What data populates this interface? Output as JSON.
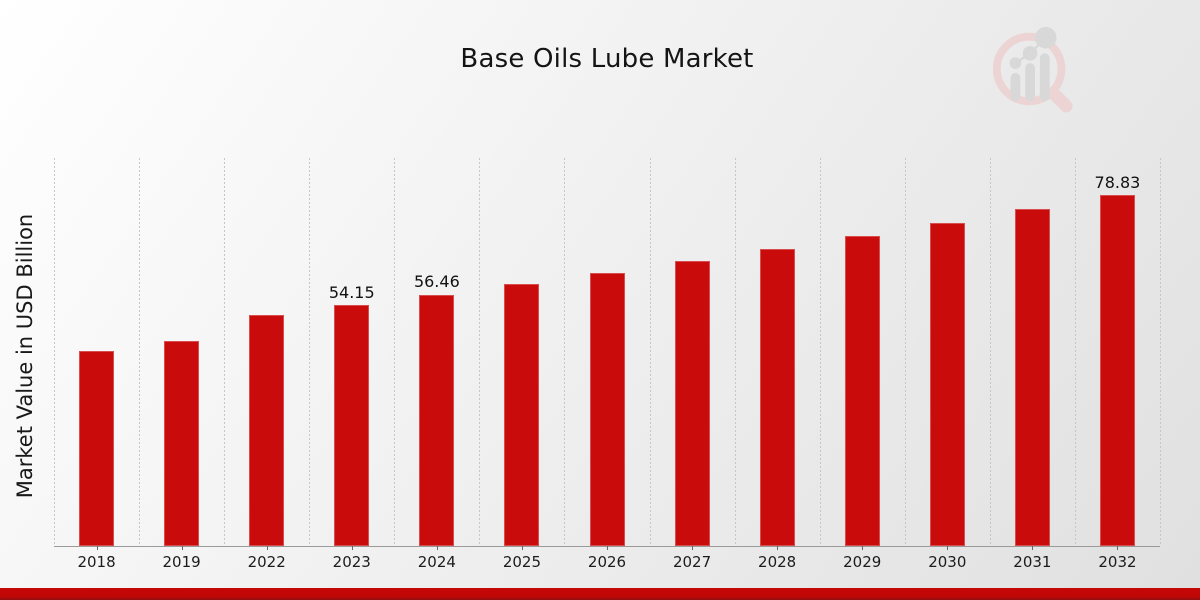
{
  "header": {
    "logo_icon": "magnifier-bar-chart-watermark"
  },
  "colors": {
    "bar": "#c90b0b",
    "footer_strip": "#c50707",
    "gridline": "#c6c6c6",
    "axis_line": "#9a9a9a",
    "text": "#141414",
    "logo_pink": "#ecd4d4",
    "logo_gray": "#d8d8d8"
  },
  "chart_data": {
    "type": "bar",
    "title": "Base Oils Lube Market",
    "ylabel": "Market Value in USD Billion",
    "xlabel": "",
    "categories": [
      "2018",
      "2019",
      "2022",
      "2023",
      "2024",
      "2025",
      "2026",
      "2027",
      "2028",
      "2029",
      "2030",
      "2031",
      "2032"
    ],
    "values": [
      43.7,
      46.0,
      51.9,
      54.15,
      56.46,
      58.9,
      61.4,
      64.0,
      66.7,
      69.6,
      72.5,
      75.6,
      78.83
    ],
    "data_labels": [
      "",
      "",
      "",
      "54.15",
      "56.46",
      "",
      "",
      "",
      "",
      "",
      "",
      "",
      "78.83"
    ],
    "ylim": [
      0,
      87.1
    ],
    "grid": "vertical-dashed",
    "legend": "none",
    "bar_color": "#c90b0b"
  }
}
